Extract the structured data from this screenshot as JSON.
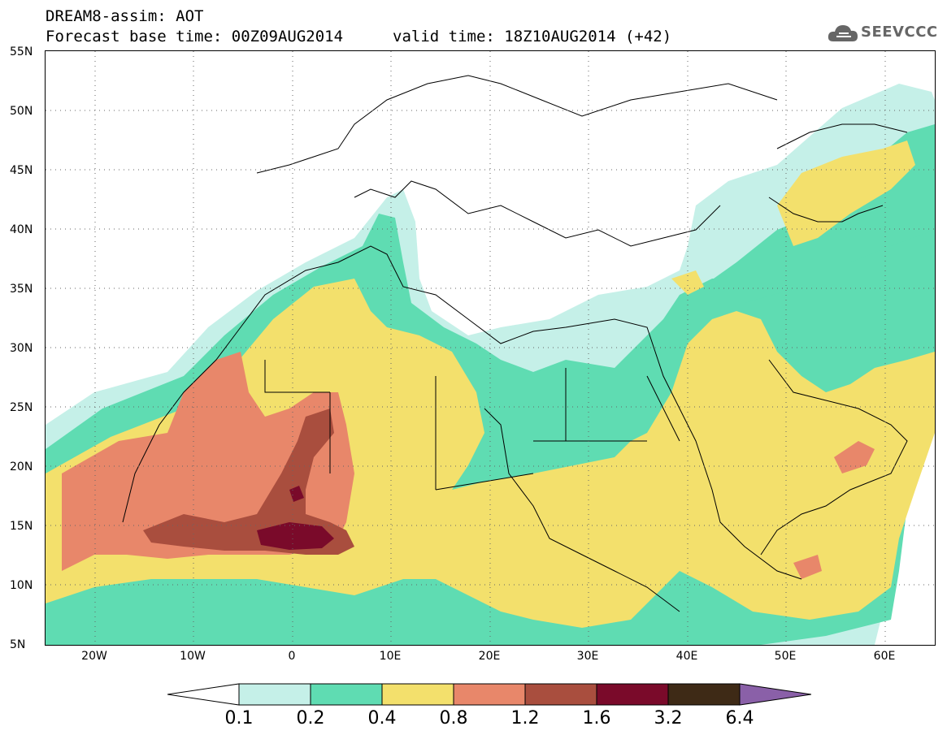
{
  "header": {
    "title_line1": "DREAM8-assim: AOT",
    "base_time": "Forecast base time: 00Z09AUG2014",
    "valid_time": "valid time: 18Z10AUG2014 (+42)"
  },
  "logo": {
    "text": "SEEVCCC",
    "icon": "cloud-icon"
  },
  "map": {
    "lat_labels": [
      "55N",
      "50N",
      "45N",
      "40N",
      "35N",
      "30N",
      "25N",
      "20N",
      "15N",
      "10N",
      "5N"
    ],
    "lon_labels": [
      "20W",
      "10W",
      "0",
      "10E",
      "20E",
      "30E",
      "40E",
      "50E",
      "60E"
    ],
    "lat_range": [
      5,
      55
    ],
    "lon_range": [
      -25,
      65
    ],
    "grid": "dotted"
  },
  "colorbar": {
    "levels": [
      "0.1",
      "0.2",
      "0.4",
      "0.8",
      "1.2",
      "1.6",
      "3.2",
      "6.4"
    ],
    "colors": [
      "#ffffff",
      "#c5f0e8",
      "#5fdcb2",
      "#f3e06c",
      "#e8876a",
      "#a94e3e",
      "#7a0a2a",
      "#3e2a16",
      "#8a60a8"
    ]
  }
}
